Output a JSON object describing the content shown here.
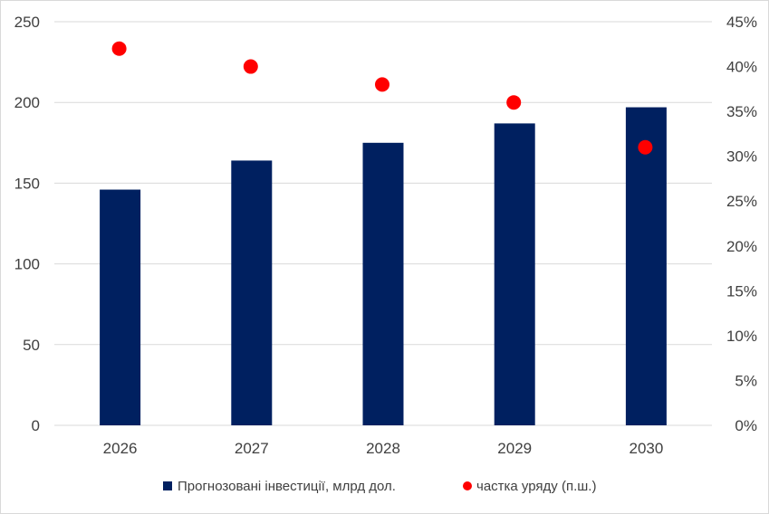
{
  "chart_data": {
    "type": "bar",
    "categories": [
      "2026",
      "2027",
      "2028",
      "2029",
      "2030"
    ],
    "series": [
      {
        "name": "Прогнозовані інвестиції, млрд дол.",
        "type": "bar",
        "axis": "left",
        "color": "#002060",
        "values": [
          146,
          164,
          175,
          187,
          197
        ]
      },
      {
        "name": "частка уряду (п.ш.)",
        "type": "scatter",
        "axis": "right",
        "color": "#ff0000",
        "values": [
          42,
          40,
          38,
          36,
          31
        ]
      }
    ],
    "y_left": {
      "min": 0,
      "max": 250,
      "step": 50,
      "tick_labels": [
        "0",
        "50",
        "100",
        "150",
        "200",
        "250"
      ]
    },
    "y_right": {
      "min": 0,
      "max": 45,
      "step": 5,
      "unit": "%",
      "tick_labels": [
        "0%",
        "5%",
        "10%",
        "15%",
        "20%",
        "25%",
        "30%",
        "35%",
        "40%",
        "45%"
      ]
    },
    "grid": true,
    "legend_position": "bottom"
  }
}
